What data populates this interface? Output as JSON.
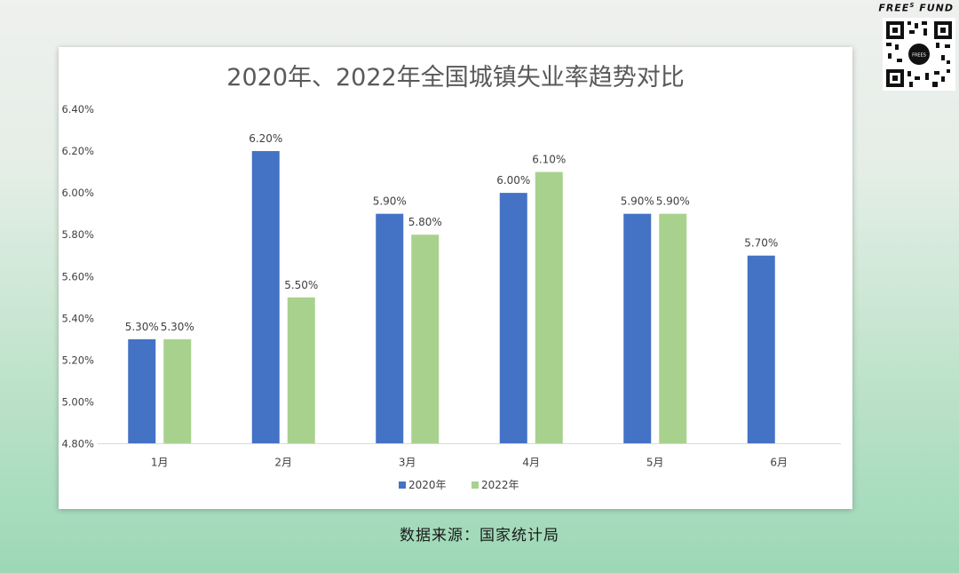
{
  "brand": {
    "text_pre": "FREE",
    "text_sup": "S",
    "text_post": " FUND",
    "qr_center_text": "FREES"
  },
  "source_note": "数据来源：国家统计局",
  "chart_data": {
    "type": "bar",
    "title": "2020年、2022年全国城镇失业率趋势对比",
    "categories": [
      "1月",
      "2月",
      "3月",
      "4月",
      "5月",
      "6月"
    ],
    "series": [
      {
        "name": "2020年",
        "color": "#4472c4",
        "values": [
          5.3,
          6.2,
          5.9,
          6.0,
          5.9,
          5.7
        ],
        "labels": [
          "5.30%",
          "6.20%",
          "5.90%",
          "6.00%",
          "5.90%",
          "5.70%"
        ]
      },
      {
        "name": "2022年",
        "color": "#a9d18e",
        "values": [
          5.3,
          5.5,
          5.8,
          6.1,
          5.9,
          null
        ],
        "labels": [
          "5.30%",
          "5.50%",
          "5.80%",
          "6.10%",
          "5.90%",
          null
        ]
      }
    ],
    "ylim": [
      4.8,
      6.4
    ],
    "yticks": [
      "4.80%",
      "5.00%",
      "5.20%",
      "5.40%",
      "5.60%",
      "5.80%",
      "6.00%",
      "6.20%",
      "6.40%"
    ],
    "ytick_values": [
      4.8,
      5.0,
      5.2,
      5.4,
      5.6,
      5.8,
      6.0,
      6.2,
      6.4
    ],
    "grid": false,
    "legend_position": "bottom"
  }
}
